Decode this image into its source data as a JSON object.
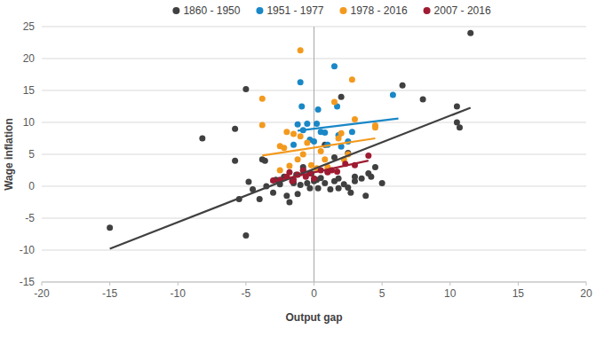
{
  "chart_data": {
    "type": "scatter",
    "x_label": "Output gap",
    "y_label": "Wage inflation",
    "xlim": [
      -20,
      20
    ],
    "xticks": [
      -20,
      -15,
      -10,
      -5,
      0,
      5,
      10,
      15,
      20
    ],
    "ylim": [
      -15,
      25
    ],
    "yticks": [
      -15,
      -10,
      -5,
      0,
      5,
      10,
      15,
      20,
      25
    ],
    "grid": true,
    "legend": "top",
    "series": [
      {
        "name": "1860 - 1950",
        "color": "#404040",
        "marker": "circle",
        "x": [
          -15,
          -8.2,
          -5.8,
          -5.8,
          -5.5,
          -5,
          -5,
          -4.8,
          -4.5,
          -4,
          -3.8,
          -3.6,
          -3.5,
          -3,
          -2.8,
          -2.5,
          -2.2,
          -2,
          -1.8,
          -1.5,
          -1.3,
          -1.2,
          -1,
          -0.8,
          -0.8,
          -0.5,
          -0.3,
          -0.2,
          0,
          0.2,
          0.3,
          0.5,
          0.8,
          0.8,
          1,
          1.2,
          1.5,
          1.5,
          1.8,
          1.8,
          2,
          2.2,
          2.5,
          2.5,
          2.7,
          3,
          3,
          3.5,
          3.8,
          4,
          4.2,
          4.5,
          5,
          6.5,
          8,
          10.5,
          10.5,
          10.7,
          11.5
        ],
        "values": [
          -6.5,
          7.5,
          9,
          4,
          -2,
          15.2,
          -7.7,
          0.7,
          -0.5,
          -2,
          4.2,
          4,
          0,
          -1,
          1,
          0.3,
          1.5,
          -1.5,
          -2.5,
          0.5,
          1.8,
          -1.2,
          0.2,
          2.5,
          3,
          0.5,
          -0.3,
          2,
          0.8,
          1,
          -0.3,
          1.3,
          0.5,
          6.5,
          2.3,
          -0.5,
          0.8,
          4.5,
          1.2,
          -0.3,
          14,
          0.3,
          -0.2,
          5.2,
          -1,
          1.5,
          0.8,
          1.2,
          -1.5,
          2,
          1.5,
          3,
          0.5,
          15.8,
          13.6,
          12.5,
          10,
          9.2,
          24
        ],
        "trend_x": [
          -15,
          11.5
        ],
        "trend_y": [
          -9.8,
          12.3
        ]
      },
      {
        "name": "1951 - 1977",
        "color": "#1a87c7",
        "marker": "circle",
        "x": [
          -1.5,
          -1.2,
          -1,
          -0.9,
          -0.8,
          -0.5,
          -0.3,
          0,
          0.2,
          0.3,
          0.5,
          0.8,
          1,
          1.5,
          1.7,
          1.8,
          2,
          2.5,
          2.8,
          5.8
        ],
        "values": [
          6.5,
          9.7,
          16.3,
          12.5,
          8.8,
          9.8,
          7.3,
          7,
          9.8,
          12,
          8.5,
          8.4,
          6.5,
          18.8,
          12.5,
          8,
          6.2,
          7,
          8.5,
          14.3
        ],
        "trend_x": [
          -1.2,
          6.2
        ],
        "trend_y": [
          8.7,
          10.6
        ]
      },
      {
        "name": "1978 - 2016",
        "color": "#f39a1e",
        "marker": "circle",
        "x": [
          -3.8,
          -3.8,
          -2.5,
          -2.5,
          -2.2,
          -2,
          -1.8,
          -1.5,
          -1.2,
          -1,
          -1,
          -0.8,
          -0.5,
          -0.2,
          0.2,
          0.5,
          0.8,
          1,
          1.5,
          1.8,
          2,
          2.2,
          2.5,
          2.8,
          3,
          4.5,
          4.5
        ],
        "values": [
          13.7,
          9.6,
          6.3,
          2.5,
          6,
          8.5,
          3.2,
          8.2,
          4.2,
          21.3,
          7.8,
          5,
          6.8,
          3.3,
          2.8,
          5.5,
          4.2,
          3,
          13.2,
          7.5,
          8.3,
          4.2,
          5,
          16.7,
          10.5,
          9.5,
          9.2
        ],
        "trend_x": [
          -3.8,
          4.5
        ],
        "trend_y": [
          4.8,
          7.5
        ]
      },
      {
        "name": "2007 - 2016",
        "color": "#9e1b32",
        "marker": "circle",
        "x": [
          -3,
          -2.5,
          -2,
          -1.8,
          -1.6,
          -1.5,
          -1.2,
          -0.8,
          -0.6,
          -0.3,
          0,
          0.5,
          1,
          1.3,
          1.7,
          2.3,
          3,
          4
        ],
        "values": [
          0.9,
          1,
          1.5,
          2.2,
          0.8,
          1,
          1.8,
          2.5,
          1.5,
          2,
          1.2,
          2.5,
          2.2,
          2.5,
          2.3,
          3.5,
          3.3,
          4.8
        ],
        "trend_x": [
          -3.2,
          4
        ],
        "trend_y": [
          0.7,
          4
        ]
      }
    ]
  }
}
